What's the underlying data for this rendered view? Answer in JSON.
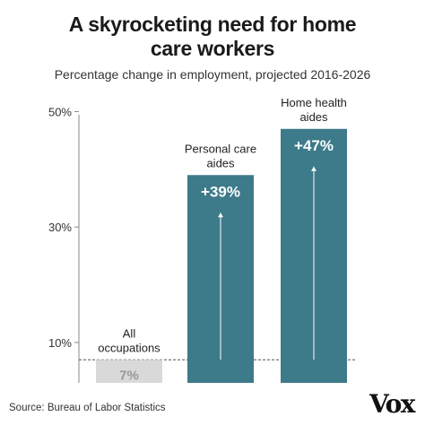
{
  "header": {
    "title_line1": "A skyrocketing need for home",
    "title_line2": "care workers",
    "subtitle": "Percentage change in employment, projected 2016-2026"
  },
  "footer": {
    "source": "Source: Bureau of Labor Statistics",
    "logo_text": "Vox"
  },
  "chart_data": {
    "type": "bar",
    "title": "A skyrocketing need for home care workers",
    "subtitle": "Percentage change in employment, projected 2016-2026",
    "categories": [
      "All occupations",
      "Personal care aides",
      "Home health aides"
    ],
    "category_label_lines": [
      [
        "All",
        "occupations"
      ],
      [
        "Personal care",
        "aides"
      ],
      [
        "Home health",
        "aides"
      ]
    ],
    "values": [
      7,
      39,
      47
    ],
    "data_labels": [
      "7%",
      "+39%",
      "+47%"
    ],
    "bar_colors": [
      "#d9d9d9",
      "#3d7a8a",
      "#3d7a8a"
    ],
    "label_colors": [
      "#999999",
      "#ffffff",
      "#ffffff"
    ],
    "yticks": [
      10,
      30,
      50
    ],
    "ytick_labels": [
      "10%",
      "30%",
      "50%"
    ],
    "ylim": [
      3,
      51
    ],
    "reference_line": 7,
    "grid": false
  }
}
